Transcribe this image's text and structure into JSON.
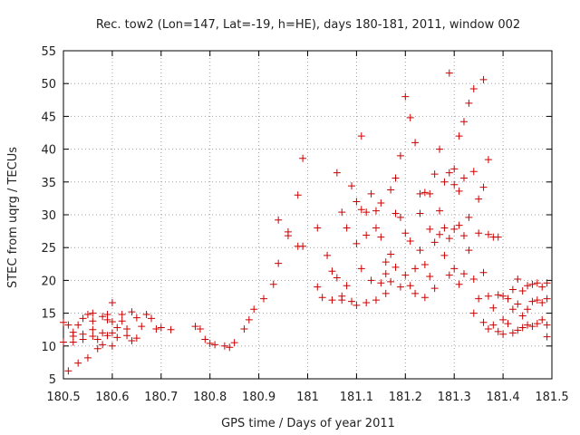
{
  "chart_data": {
    "type": "scatter",
    "title": "Rec. tow2 (Lon=147, Lat=-19, h=HE), days 180-181, 2011, window 002",
    "xlabel": "GPS time / Days of year 2011",
    "ylabel": "STEC from uqrg / TECUs",
    "xlim": [
      180.5,
      181.5
    ],
    "ylim": [
      5,
      55
    ],
    "xticks": [
      180.5,
      180.6,
      180.7,
      180.8,
      180.9,
      181.0,
      181.1,
      181.2,
      181.3,
      181.4,
      181.5
    ],
    "xtick_labels": [
      "180.5",
      "180.6",
      "180.7",
      "180.8",
      "180.9",
      "181",
      "181.1",
      "181.2",
      "181.3",
      "181.4",
      "181.5"
    ],
    "yticks": [
      5,
      10,
      15,
      20,
      25,
      30,
      35,
      40,
      45,
      50,
      55
    ],
    "ytick_labels": [
      "5",
      "10",
      "15",
      "20",
      "25",
      "30",
      "35",
      "40",
      "45",
      "50",
      "55"
    ],
    "grid": true,
    "marker": "+",
    "color": "#cc0000",
    "points": [
      [
        180.5,
        13.6
      ],
      [
        180.5,
        10.6
      ],
      [
        180.51,
        13.2
      ],
      [
        180.51,
        6.2
      ],
      [
        180.52,
        10.6
      ],
      [
        180.52,
        11.5
      ],
      [
        180.52,
        12.1
      ],
      [
        180.53,
        13.2
      ],
      [
        180.53,
        7.4
      ],
      [
        180.54,
        11.0
      ],
      [
        180.54,
        11.8
      ],
      [
        180.54,
        14.2
      ],
      [
        180.55,
        14.8
      ],
      [
        180.55,
        8.2
      ],
      [
        180.56,
        12.5
      ],
      [
        180.56,
        11.5
      ],
      [
        180.56,
        13.8
      ],
      [
        180.56,
        15.0
      ],
      [
        180.57,
        9.6
      ],
      [
        180.57,
        11.0
      ],
      [
        180.58,
        14.5
      ],
      [
        180.58,
        12.0
      ],
      [
        180.58,
        10.2
      ],
      [
        180.59,
        14.8
      ],
      [
        180.59,
        14.0
      ],
      [
        180.59,
        11.6
      ],
      [
        180.6,
        13.7
      ],
      [
        180.6,
        10.0
      ],
      [
        180.6,
        12.0
      ],
      [
        180.6,
        16.6
      ],
      [
        180.61,
        11.3
      ],
      [
        180.61,
        12.8
      ],
      [
        180.62,
        14.8
      ],
      [
        180.62,
        13.8
      ],
      [
        180.63,
        11.6
      ],
      [
        180.63,
        12.6
      ],
      [
        180.64,
        15.2
      ],
      [
        180.64,
        10.8
      ],
      [
        180.65,
        14.3
      ],
      [
        180.65,
        11.2
      ],
      [
        180.66,
        13.0
      ],
      [
        180.67,
        14.8
      ],
      [
        180.68,
        14.2
      ],
      [
        180.69,
        12.6
      ],
      [
        180.7,
        12.8
      ],
      [
        180.72,
        12.5
      ],
      [
        180.77,
        13.0
      ],
      [
        180.78,
        12.6
      ],
      [
        180.79,
        11.0
      ],
      [
        180.8,
        10.4
      ],
      [
        180.81,
        10.2
      ],
      [
        180.83,
        10.0
      ],
      [
        180.84,
        9.8
      ],
      [
        180.85,
        10.5
      ],
      [
        180.87,
        12.6
      ],
      [
        180.88,
        14.0
      ],
      [
        180.89,
        15.6
      ],
      [
        180.91,
        17.2
      ],
      [
        180.93,
        19.4
      ],
      [
        180.94,
        22.6
      ],
      [
        180.94,
        29.2
      ],
      [
        180.96,
        26.8
      ],
      [
        180.96,
        27.4
      ],
      [
        180.98,
        25.2
      ],
      [
        180.98,
        33.0
      ],
      [
        180.99,
        38.6
      ],
      [
        180.99,
        25.2
      ],
      [
        181.02,
        28.0
      ],
      [
        181.02,
        19.0
      ],
      [
        181.03,
        17.4
      ],
      [
        181.04,
        23.8
      ],
      [
        181.05,
        21.4
      ],
      [
        181.05,
        17.0
      ],
      [
        181.06,
        36.4
      ],
      [
        181.06,
        20.4
      ],
      [
        181.07,
        17.0
      ],
      [
        181.07,
        30.4
      ],
      [
        181.07,
        17.6
      ],
      [
        181.08,
        28.0
      ],
      [
        181.08,
        19.2
      ],
      [
        181.09,
        34.4
      ],
      [
        181.09,
        16.8
      ],
      [
        181.1,
        32.0
      ],
      [
        181.1,
        25.6
      ],
      [
        181.1,
        16.2
      ],
      [
        181.11,
        42.0
      ],
      [
        181.11,
        30.8
      ],
      [
        181.11,
        21.8
      ],
      [
        181.12,
        30.4
      ],
      [
        181.12,
        26.9
      ],
      [
        181.12,
        16.6
      ],
      [
        181.13,
        33.2
      ],
      [
        181.13,
        20.0
      ],
      [
        181.14,
        30.6
      ],
      [
        181.14,
        28.0
      ],
      [
        181.14,
        17.0
      ],
      [
        181.15,
        31.8
      ],
      [
        181.15,
        26.6
      ],
      [
        181.15,
        19.6
      ],
      [
        181.16,
        22.8
      ],
      [
        181.16,
        21.0
      ],
      [
        181.16,
        18.0
      ],
      [
        181.17,
        33.8
      ],
      [
        181.17,
        24.0
      ],
      [
        181.17,
        19.8
      ],
      [
        181.18,
        35.6
      ],
      [
        181.18,
        30.2
      ],
      [
        181.18,
        22.0
      ],
      [
        181.19,
        39.0
      ],
      [
        181.19,
        29.6
      ],
      [
        181.19,
        19.0
      ],
      [
        181.2,
        48.0
      ],
      [
        181.2,
        27.2
      ],
      [
        181.2,
        20.8
      ],
      [
        181.21,
        44.8
      ],
      [
        181.21,
        26.0
      ],
      [
        181.21,
        19.2
      ],
      [
        181.22,
        41.0
      ],
      [
        181.22,
        21.8
      ],
      [
        181.22,
        18.0
      ],
      [
        181.23,
        33.2
      ],
      [
        181.23,
        30.2
      ],
      [
        181.23,
        24.6
      ],
      [
        181.24,
        33.4
      ],
      [
        181.24,
        22.4
      ],
      [
        181.24,
        17.4
      ],
      [
        181.25,
        33.2
      ],
      [
        181.25,
        27.8
      ],
      [
        181.25,
        20.6
      ],
      [
        181.26,
        36.2
      ],
      [
        181.26,
        25.8
      ],
      [
        181.26,
        18.8
      ],
      [
        181.27,
        40.0
      ],
      [
        181.27,
        30.6
      ],
      [
        181.27,
        27.0
      ],
      [
        181.28,
        35.0
      ],
      [
        181.28,
        28.0
      ],
      [
        181.28,
        23.8
      ],
      [
        181.29,
        51.6
      ],
      [
        181.29,
        36.4
      ],
      [
        181.29,
        26.4
      ],
      [
        181.29,
        20.8
      ],
      [
        181.3,
        37.0
      ],
      [
        181.3,
        34.6
      ],
      [
        181.3,
        27.8
      ],
      [
        181.3,
        21.8
      ],
      [
        181.31,
        42.0
      ],
      [
        181.31,
        33.6
      ],
      [
        181.31,
        28.4
      ],
      [
        181.31,
        19.4
      ],
      [
        181.32,
        44.2
      ],
      [
        181.32,
        35.6
      ],
      [
        181.32,
        26.8
      ],
      [
        181.32,
        21.0
      ],
      [
        181.33,
        47.0
      ],
      [
        181.33,
        29.6
      ],
      [
        181.33,
        24.6
      ],
      [
        181.34,
        49.2
      ],
      [
        181.34,
        36.6
      ],
      [
        181.34,
        20.2
      ],
      [
        181.34,
        15.0
      ],
      [
        181.35,
        32.4
      ],
      [
        181.35,
        27.2
      ],
      [
        181.35,
        17.2
      ],
      [
        181.36,
        50.6
      ],
      [
        181.36,
        34.2
      ],
      [
        181.36,
        21.2
      ],
      [
        181.36,
        13.6
      ],
      [
        181.37,
        38.4
      ],
      [
        181.37,
        27.0
      ],
      [
        181.37,
        17.6
      ],
      [
        181.37,
        12.6
      ],
      [
        181.38,
        26.6
      ],
      [
        181.38,
        15.8
      ],
      [
        181.38,
        13.2
      ],
      [
        181.39,
        26.6
      ],
      [
        181.39,
        17.8
      ],
      [
        181.39,
        12.2
      ],
      [
        181.4,
        17.6
      ],
      [
        181.4,
        14.0
      ],
      [
        181.4,
        11.8
      ],
      [
        181.41,
        17.2
      ],
      [
        181.41,
        13.4
      ],
      [
        181.42,
        18.6
      ],
      [
        181.42,
        15.6
      ],
      [
        181.42,
        12.0
      ],
      [
        181.43,
        20.2
      ],
      [
        181.43,
        16.4
      ],
      [
        181.43,
        12.4
      ],
      [
        181.44,
        18.4
      ],
      [
        181.44,
        14.6
      ],
      [
        181.44,
        12.8
      ],
      [
        181.45,
        19.2
      ],
      [
        181.45,
        15.6
      ],
      [
        181.45,
        13.2
      ],
      [
        181.46,
        19.4
      ],
      [
        181.46,
        16.8
      ],
      [
        181.46,
        13.0
      ],
      [
        181.47,
        19.6
      ],
      [
        181.47,
        17.0
      ],
      [
        181.47,
        13.4
      ],
      [
        181.48,
        19.0
      ],
      [
        181.48,
        16.6
      ],
      [
        181.48,
        14.0
      ],
      [
        181.49,
        19.6
      ],
      [
        181.49,
        17.2
      ],
      [
        181.49,
        13.2
      ],
      [
        181.49,
        11.4
      ]
    ]
  }
}
